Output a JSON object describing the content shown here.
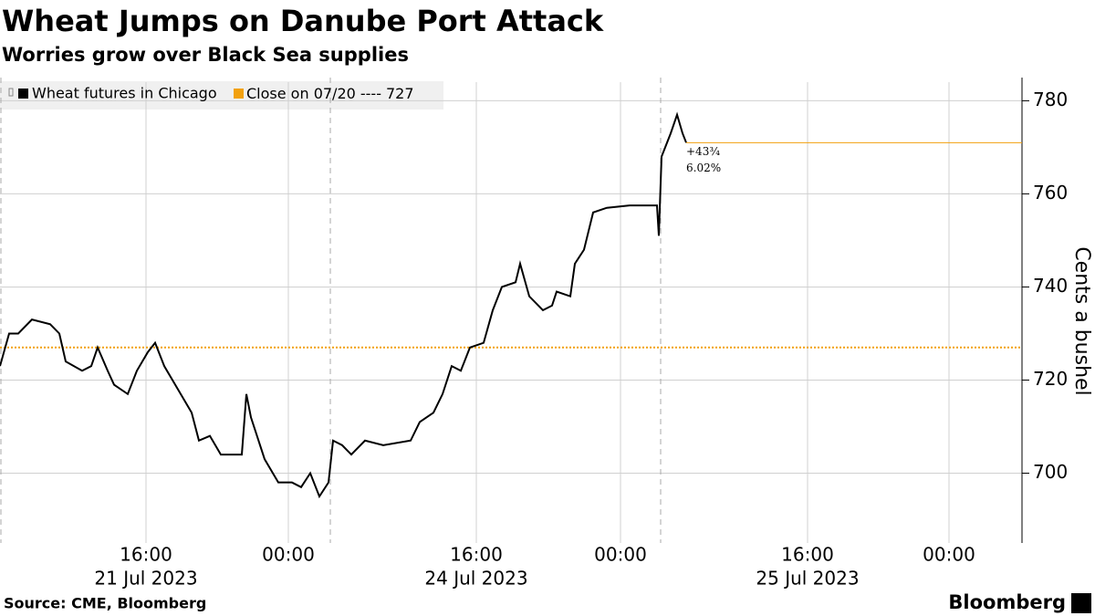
{
  "chart_data": {
    "type": "line",
    "title": "Wheat Jumps on Danube Port Attack",
    "subtitle": "Worries grow over Black Sea supplies",
    "y_axis_label": "Cents a bushel",
    "source": "Source: CME, Bloomberg",
    "brand": "Bloomberg",
    "x": [
      0,
      0.5,
      1,
      1.75,
      2.75,
      3.25,
      3.6,
      4.5,
      5,
      5.35,
      5.9,
      6.25,
      7,
      7.5,
      8.1,
      8.5,
      9,
      9.75,
      10.5,
      10.9,
      11.5,
      12.1,
      13.25,
      13.5,
      13.75,
      14.5,
      15.25,
      16,
      16.5,
      17,
      17.5,
      18,
      18.25,
      18.75,
      19.25,
      20,
      21,
      22.5,
      23,
      23.75,
      24.25,
      24.75,
      25.25,
      25.75,
      26.5,
      27,
      27.5,
      28.25,
      28.5,
      29,
      29.75,
      30.25,
      30.5,
      31.25,
      31.5,
      32,
      32.5,
      33.25,
      34.5,
      36,
      36.1,
      36.25,
      36.75,
      37.1,
      37.4,
      37.6
    ],
    "series": [
      {
        "name": "Wheat futures in Chicago",
        "color": "#000000",
        "values": [
          723,
          730,
          730,
          733,
          732,
          730,
          724,
          722,
          723,
          727,
          722,
          719,
          717,
          722,
          726,
          728,
          723,
          718,
          713,
          707,
          708,
          704,
          704,
          717,
          712,
          703,
          698,
          698,
          697,
          700,
          695,
          698,
          707,
          706,
          704,
          707,
          706,
          707,
          711,
          713,
          717,
          723,
          722,
          727,
          728,
          735,
          740,
          741,
          745,
          738,
          735,
          736,
          739,
          738,
          745,
          748,
          756,
          757,
          757.5,
          757.5,
          751,
          768,
          773,
          777,
          773,
          771
        ]
      }
    ],
    "reference": {
      "name": "Close on 07/20 ----",
      "value": 727,
      "color": "#f2a10e"
    },
    "annotations": [
      "+43¾",
      "6.02%"
    ],
    "session_breaks": [
      0,
      18.05,
      36.15
    ],
    "xlim": [
      0,
      56
    ],
    "xticks": [
      {
        "value": 8,
        "label": "16:00"
      },
      {
        "value": 15.8,
        "label": "00:00"
      },
      {
        "value": 26.1,
        "label": "16:00"
      },
      {
        "value": 34,
        "label": "00:00"
      },
      {
        "value": 44.25,
        "label": "16:00"
      },
      {
        "value": 52,
        "label": "00:00"
      }
    ],
    "x_date_labels": [
      {
        "value": 8,
        "label": "21 Jul 2023"
      },
      {
        "value": 26.1,
        "label": "24 Jul 2023"
      },
      {
        "value": 44.25,
        "label": "25 Jul 2023"
      }
    ],
    "ylim": [
      685,
      784
    ],
    "yticks": [
      700,
      720,
      740,
      760,
      780
    ],
    "grid": true
  }
}
